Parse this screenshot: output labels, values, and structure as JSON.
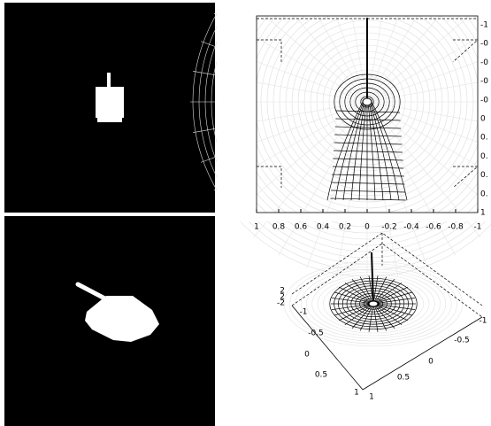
{
  "top_plot": {
    "x_tick_labels": [
      "1",
      "0.8",
      "0.6",
      "0.4",
      "0.2",
      "0",
      "-0.2",
      "-0.4",
      "-0.6",
      "-0.8",
      "-1"
    ],
    "y_tick_labels": [
      "-1",
      "-0",
      "-0",
      "-0",
      "-0",
      "0",
      "0.",
      "0.",
      "0.",
      "0.",
      "1"
    ]
  },
  "bottom_plot": {
    "left_axis_labels": [
      "-1",
      "-0.5",
      "0",
      "0.5",
      "1"
    ],
    "right_axis_labels": [
      "1",
      "0.5",
      "0",
      "-0.5",
      "-1"
    ],
    "z_axis_labels": [
      "2",
      "2",
      "-2"
    ]
  }
}
